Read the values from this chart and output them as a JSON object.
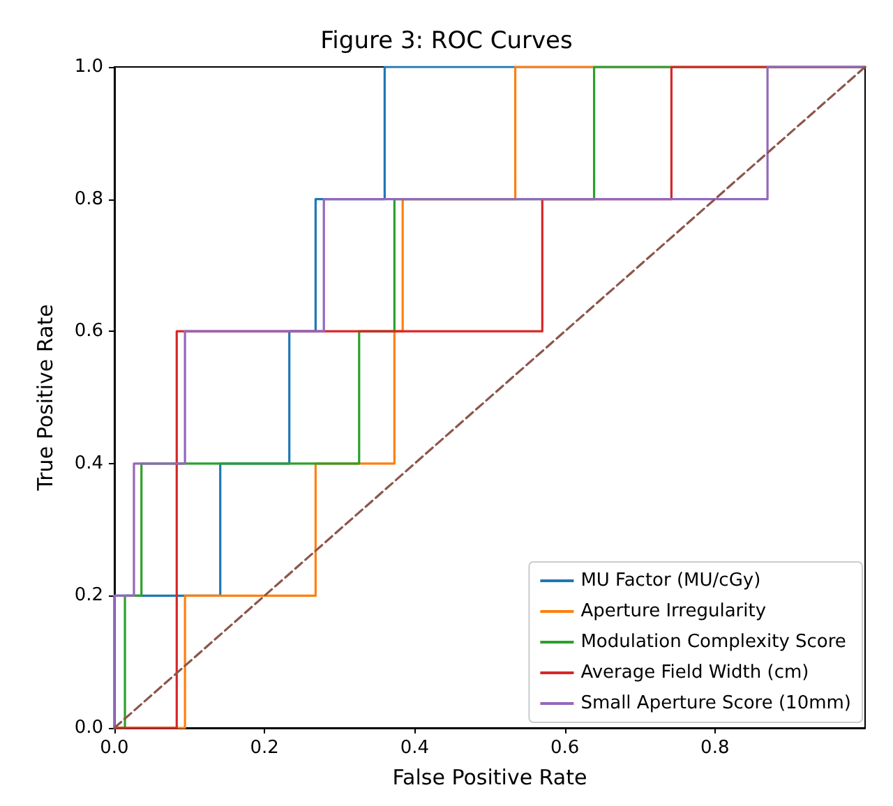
{
  "chart_data": {
    "type": "line",
    "title": "Figure 3: ROC Curves",
    "xlabel": "False Positive Rate",
    "ylabel": "True Positive Rate",
    "xlim": [
      0,
      1
    ],
    "ylim": [
      0,
      1
    ],
    "xticks": [
      {
        "value": 0,
        "label": "0.0"
      },
      {
        "value": 0.2,
        "label": "0.2"
      },
      {
        "value": 0.4,
        "label": "0.4"
      },
      {
        "value": 0.6,
        "label": "0.6"
      },
      {
        "value": 0.8,
        "label": "0.8"
      }
    ],
    "yticks": [
      {
        "value": 0,
        "label": "0.0"
      },
      {
        "value": 0.2,
        "label": "0.2"
      },
      {
        "value": 0.4,
        "label": "0.4"
      },
      {
        "value": 0.6,
        "label": "0.6"
      },
      {
        "value": 0.8,
        "label": "0.8"
      },
      {
        "value": 1,
        "label": "1.0"
      }
    ],
    "grid": false,
    "legend": "bottom right",
    "marker": "none",
    "line_style": "solid",
    "series": [
      {
        "name": "MU Factor (MU/cGy)",
        "color": "#1f77b4",
        "x": [
          0,
          0,
          0.141,
          0.141,
          0.233,
          0.233,
          0.268,
          0.268,
          0.36,
          0.36,
          1
        ],
        "values": [
          0,
          0.2,
          0.2,
          0.4,
          0.4,
          0.6,
          0.6,
          0.8,
          0.8,
          1,
          1
        ]
      },
      {
        "name": "Aperture Irregularity",
        "color": "#ff7f0e",
        "x": [
          0,
          0.094,
          0.094,
          0.268,
          0.268,
          0.373,
          0.373,
          0.384,
          0.384,
          0.534,
          0.534,
          1
        ],
        "values": [
          0,
          0,
          0.2,
          0.2,
          0.4,
          0.4,
          0.6,
          0.6,
          0.8,
          0.8,
          1,
          1
        ]
      },
      {
        "name": "Modulation Complexity Score",
        "color": "#2ca02c",
        "x": [
          0,
          0.014,
          0.014,
          0.036,
          0.036,
          0.326,
          0.326,
          0.373,
          0.373,
          0.639,
          0.639,
          1
        ],
        "values": [
          0,
          0,
          0.2,
          0.2,
          0.4,
          0.4,
          0.6,
          0.6,
          0.8,
          0.8,
          1,
          1
        ]
      },
      {
        "name": "Average Field Width (cm)",
        "color": "#d62728",
        "x": [
          0,
          0.083,
          0.083,
          0.57,
          0.57,
          0.742,
          0.742,
          1
        ],
        "values": [
          0,
          0,
          0.6,
          0.6,
          0.8,
          0.8,
          1,
          1
        ]
      },
      {
        "name": "Small Aperture Score (10mm)",
        "color": "#9467bd",
        "x": [
          0,
          0,
          0.026,
          0.026,
          0.094,
          0.094,
          0.279,
          0.279,
          0.87,
          0.87,
          1
        ],
        "values": [
          0,
          0.2,
          0.2,
          0.4,
          0.4,
          0.6,
          0.6,
          0.8,
          0.8,
          1,
          1
        ]
      },
      {
        "color": "#8c564b",
        "line_style": "dashed",
        "x": [
          0,
          1
        ],
        "values": [
          0,
          1
        ]
      }
    ]
  }
}
